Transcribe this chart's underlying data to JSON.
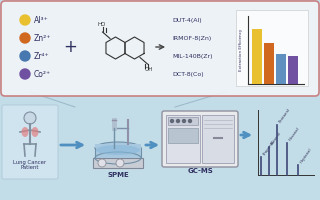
{
  "bg_color": "#c2dce8",
  "box_bg": "#f0f4f8",
  "box_border": "#c87878",
  "metals": [
    "Al³⁺",
    "Zn²⁺",
    "Zr⁴⁺",
    "Co²⁺"
  ],
  "metal_colors": [
    "#e8c030",
    "#d06820",
    "#4878b0",
    "#7050a0"
  ],
  "mof_labels": [
    "DUT-4(Al)",
    "IRMOF-8(Zn)",
    "MIL-140B(Zr)",
    "DCT-8(Co)"
  ],
  "bar_values": [
    0.95,
    0.72,
    0.52,
    0.48
  ],
  "bar_colors": [
    "#e8c030",
    "#d06820",
    "#6090c0",
    "#7050a0"
  ],
  "arrow_color": "#5090c0",
  "label_color": "#303060",
  "text_color_dark": "#333333"
}
